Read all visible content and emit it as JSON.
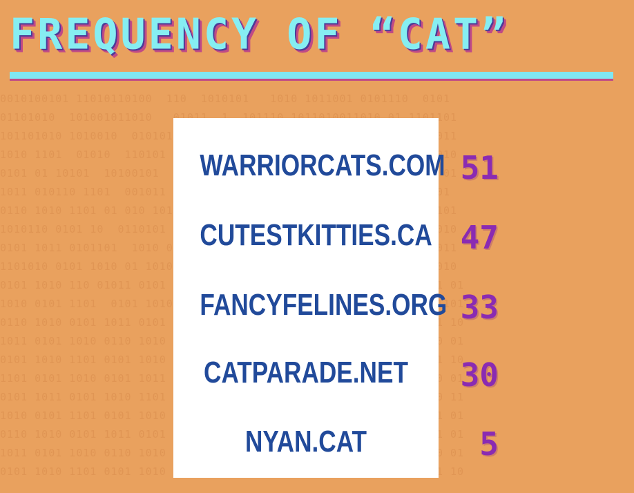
{
  "title": "FREQUENCY OF “CAT”",
  "rows": [
    {
      "site": "WARRIORCATS.COM",
      "count": "51"
    },
    {
      "site": "CUTESTKITTIES.CA",
      "count": "47"
    },
    {
      "site": "FANCYFELINES.ORG",
      "count": "33"
    },
    {
      "site": "CATPARADE.NET",
      "count": "30"
    },
    {
      "site": "NYAN.CAT",
      "count": "5"
    }
  ],
  "colors": {
    "background": "#E9A15E",
    "title": "#86EEF2",
    "site_text": "#214A9A",
    "count_text": "#8A2BB2"
  }
}
